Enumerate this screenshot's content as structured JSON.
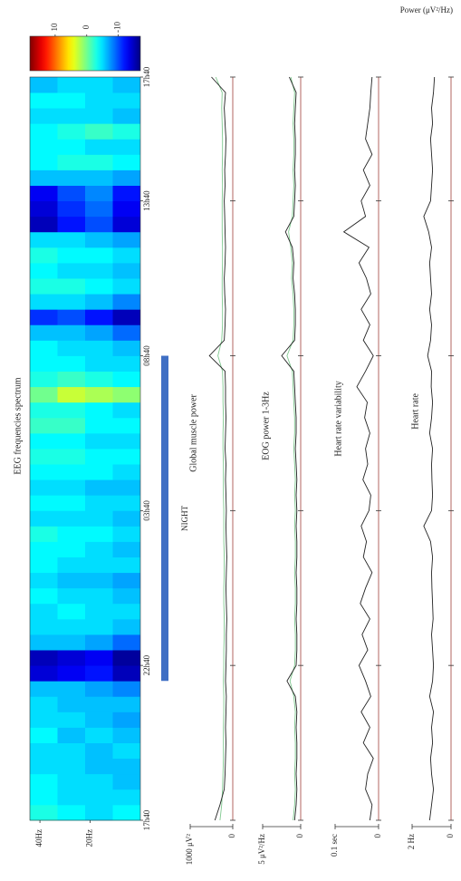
{
  "times": [
    0,
    0.5,
    1,
    1.5,
    2,
    2.5,
    3,
    3.5,
    4,
    4.5,
    5,
    5.5,
    6,
    6.5,
    7,
    7.5,
    8,
    8.5,
    9,
    9.5,
    10,
    10.5,
    11,
    11.5,
    12,
    12.5,
    13,
    13.5,
    14,
    14.5,
    15,
    15.5,
    16,
    16.5,
    17,
    17.5,
    18,
    18.5,
    19,
    19.5,
    20,
    20.5,
    21,
    21.5,
    22,
    22.5,
    23,
    23.5,
    24
  ],
  "tlim": [
    0,
    24
  ],
  "time_ticks": [
    {
      "value": 0,
      "label": "17h40"
    },
    {
      "value": 5,
      "label": "22h40"
    },
    {
      "value": 10,
      "label": "03h40"
    },
    {
      "value": 15,
      "label": "08h40"
    },
    {
      "value": 20,
      "label": "13h40"
    },
    {
      "value": 24,
      "label": "17h40"
    }
  ],
  "colorbar": {
    "label": "Power (μV²/Hz)",
    "lim": [
      18,
      -17
    ],
    "ticks": [
      10,
      0,
      -10
    ]
  },
  "spectrogram": {
    "title": "EEG frequencies spectrum",
    "flim": [
      44,
      0
    ],
    "freq_bins": [
      0,
      11,
      22,
      33,
      44
    ],
    "freq_ticks": [
      {
        "value": 40,
        "label": "40Hz"
      },
      {
        "value": 20,
        "label": "20Hz"
      }
    ],
    "values": [
      [
        -4,
        -5,
        -4,
        -3
      ],
      [
        -5,
        -5,
        -5,
        -4
      ],
      [
        -6,
        -5,
        -5,
        -4
      ],
      [
        -6,
        -6,
        -5,
        -5
      ],
      [
        -5,
        -6,
        -5,
        -5
      ],
      [
        -6,
        -5,
        -6,
        -4
      ],
      [
        -7,
        -6,
        -5,
        -5
      ],
      [
        -6,
        -6,
        -6,
        -5
      ],
      [
        -8,
        -7,
        -6,
        -6
      ],
      [
        -15,
        -12,
        -13,
        -14
      ],
      [
        -16,
        -13,
        -14,
        -15
      ],
      [
        -9,
        -7,
        -6,
        -6
      ],
      [
        -6,
        -5,
        -5,
        -5
      ],
      [
        -5,
        -5,
        -4,
        -5
      ],
      [
        -6,
        -5,
        -5,
        -4
      ],
      [
        -7,
        -6,
        -6,
        -5
      ],
      [
        -5,
        -5,
        -5,
        -4
      ],
      [
        -6,
        -5,
        -4,
        -4
      ],
      [
        -5,
        -4,
        -4,
        -3
      ],
      [
        -6,
        -5,
        -5,
        -5
      ],
      [
        -5,
        -5,
        -4,
        -4
      ],
      [
        -6,
        -6,
        -5,
        -5
      ],
      [
        -5,
        -4,
        -4,
        -4
      ],
      [
        -4,
        -4,
        -3,
        -3
      ],
      [
        -5,
        -5,
        -4,
        -4
      ],
      [
        -4,
        -4,
        -2,
        -2
      ],
      [
        -5,
        -4,
        -3,
        -3
      ],
      [
        1,
        2,
        3,
        0
      ],
      [
        -4,
        -3,
        -2,
        -3
      ],
      [
        -5,
        -5,
        -4,
        -4
      ],
      [
        -6,
        -5,
        -5,
        -4
      ],
      [
        -9,
        -7,
        -6,
        -6
      ],
      [
        -15,
        -12,
        -10,
        -11
      ],
      [
        -8,
        -6,
        -5,
        -5
      ],
      [
        -5,
        -4,
        -3,
        -3
      ],
      [
        -6,
        -5,
        -5,
        -4
      ],
      [
        -5,
        -4,
        -4,
        -3
      ],
      [
        -7,
        -6,
        -5,
        -5
      ],
      [
        -14,
        -10,
        -12,
        -15
      ],
      [
        -13,
        -9,
        -11,
        -14
      ],
      [
        -12,
        -8,
        -10,
        -13
      ],
      [
        -7,
        -6,
        -6,
        -6
      ],
      [
        -4,
        -3,
        -3,
        -4
      ],
      [
        -5,
        -5,
        -4,
        -4
      ],
      [
        -3,
        -2,
        -3,
        -4
      ],
      [
        -6,
        -5,
        -5,
        -5
      ],
      [
        -5,
        -5,
        -4,
        -4
      ],
      [
        -6,
        -5,
        -5,
        -6
      ]
    ]
  },
  "night": {
    "label": "NIGHT",
    "start": 4.5,
    "end": 15,
    "color": "#3f6fc4"
  },
  "traces": [
    {
      "title": "Global muscle power",
      "ylim": [
        0,
        1000
      ],
      "yticks": [
        0,
        {
          "value": 1000,
          "label": "1000 μV²"
        }
      ],
      "series": [
        {
          "color": "#222222",
          "values": [
            420,
            300,
            200,
            180,
            170,
            160,
            170,
            160,
            150,
            170,
            160,
            150,
            150,
            140,
            150,
            160,
            150,
            140,
            150,
            160,
            150,
            160,
            170,
            160,
            180,
            170,
            160,
            170,
            170,
            180,
            550,
            200,
            180,
            170,
            190,
            200,
            180,
            170,
            180,
            190,
            200,
            180,
            190,
            170,
            160,
            180,
            200,
            170,
            500
          ]
        },
        {
          "color": "#7fc98f",
          "values": [
            300,
            260,
            240,
            230,
            220,
            220,
            220,
            210,
            210,
            220,
            210,
            210,
            200,
            200,
            210,
            210,
            200,
            200,
            210,
            210,
            210,
            220,
            220,
            220,
            230,
            230,
            220,
            230,
            230,
            240,
            350,
            260,
            240,
            240,
            250,
            250,
            240,
            240,
            250,
            250,
            250,
            240,
            250,
            240,
            240,
            250,
            260,
            250,
            400
          ]
        }
      ]
    },
    {
      "title": "EOG power 1-3Hz",
      "ylim": [
        0,
        5
      ],
      "yticks": [
        0,
        {
          "value": 5,
          "label": "5 μV²/Hz"
        }
      ],
      "series": [
        {
          "color": "#222222",
          "values": [
            0.8,
            0.6,
            0.5,
            0.6,
            0.5,
            0.5,
            0.6,
            0.5,
            0.7,
            1.8,
            0.6,
            0.5,
            0.5,
            0.6,
            0.5,
            0.5,
            0.6,
            0.5,
            0.5,
            0.6,
            0.5,
            0.6,
            0.5,
            0.6,
            0.7,
            0.6,
            0.6,
            0.7,
            0.8,
            0.9,
            2.5,
            0.8,
            0.7,
            0.7,
            0.8,
            1.0,
            0.9,
            1.1,
            2.0,
            0.9,
            0.8,
            0.7,
            0.8,
            0.7,
            0.7,
            0.8,
            0.7,
            0.6,
            1.5
          ]
        },
        {
          "color": "#7fc98f",
          "values": [
            1.0,
            0.8,
            0.7,
            0.8,
            0.7,
            0.7,
            0.8,
            0.7,
            0.9,
            1.4,
            0.8,
            0.7,
            0.7,
            0.8,
            0.7,
            0.7,
            0.8,
            0.7,
            0.7,
            0.8,
            0.7,
            0.8,
            0.7,
            0.8,
            0.9,
            0.8,
            0.8,
            0.9,
            1.0,
            1.1,
            1.8,
            1.0,
            0.9,
            0.9,
            1.0,
            1.2,
            1.1,
            1.3,
            1.6,
            1.1,
            1.0,
            0.9,
            1.0,
            0.9,
            0.9,
            1.0,
            0.9,
            0.8,
            1.3
          ]
        }
      ]
    },
    {
      "title": "Heart rate variability",
      "ylim": [
        0,
        0.1
      ],
      "yticks": [
        0,
        {
          "value": 0.1,
          "label": "0.1 sec"
        }
      ],
      "series": [
        {
          "color": "#222222",
          "values": [
            0.02,
            0.015,
            0.03,
            0.025,
            0.012,
            0.035,
            0.02,
            0.04,
            0.018,
            0.03,
            0.045,
            0.025,
            0.038,
            0.02,
            0.042,
            0.03,
            0.015,
            0.035,
            0.028,
            0.04,
            0.022,
            0.018,
            0.036,
            0.025,
            0.03,
            0.02,
            0.032,
            0.026,
            0.05,
            0.03,
            0.012,
            0.035,
            0.02,
            0.04,
            0.018,
            0.028,
            0.045,
            0.022,
            0.08,
            0.03,
            0.04,
            0.02,
            0.035,
            0.015,
            0.03,
            0.025,
            0.02,
            0.018,
            0.015
          ]
        }
      ]
    },
    {
      "title": "Heart rate",
      "ylim": [
        0,
        2
      ],
      "yticks": [
        0,
        {
          "value": 2,
          "label": "2 Hz"
        }
      ],
      "series": [
        {
          "color": "#222222",
          "values": [
            1.1,
            1.0,
            0.9,
            1.0,
            1.05,
            0.95,
            1.0,
            0.9,
            1.1,
            0.95,
            0.9,
            0.95,
            1.0,
            0.92,
            0.95,
            0.98,
            1.0,
            0.95,
            1.05,
            1.4,
            1.0,
            0.95,
            0.98,
            1.0,
            0.95,
            1.1,
            1.0,
            0.95,
            1.02,
            1.0,
            1.2,
            1.05,
            1.0,
            1.1,
            1.0,
            1.05,
            1.1,
            1.0,
            1.15,
            1.4,
            1.05,
            1.0,
            0.95,
            1.0,
            1.05,
            0.95,
            1.0,
            0.9,
            0.85
          ]
        }
      ]
    }
  ]
}
